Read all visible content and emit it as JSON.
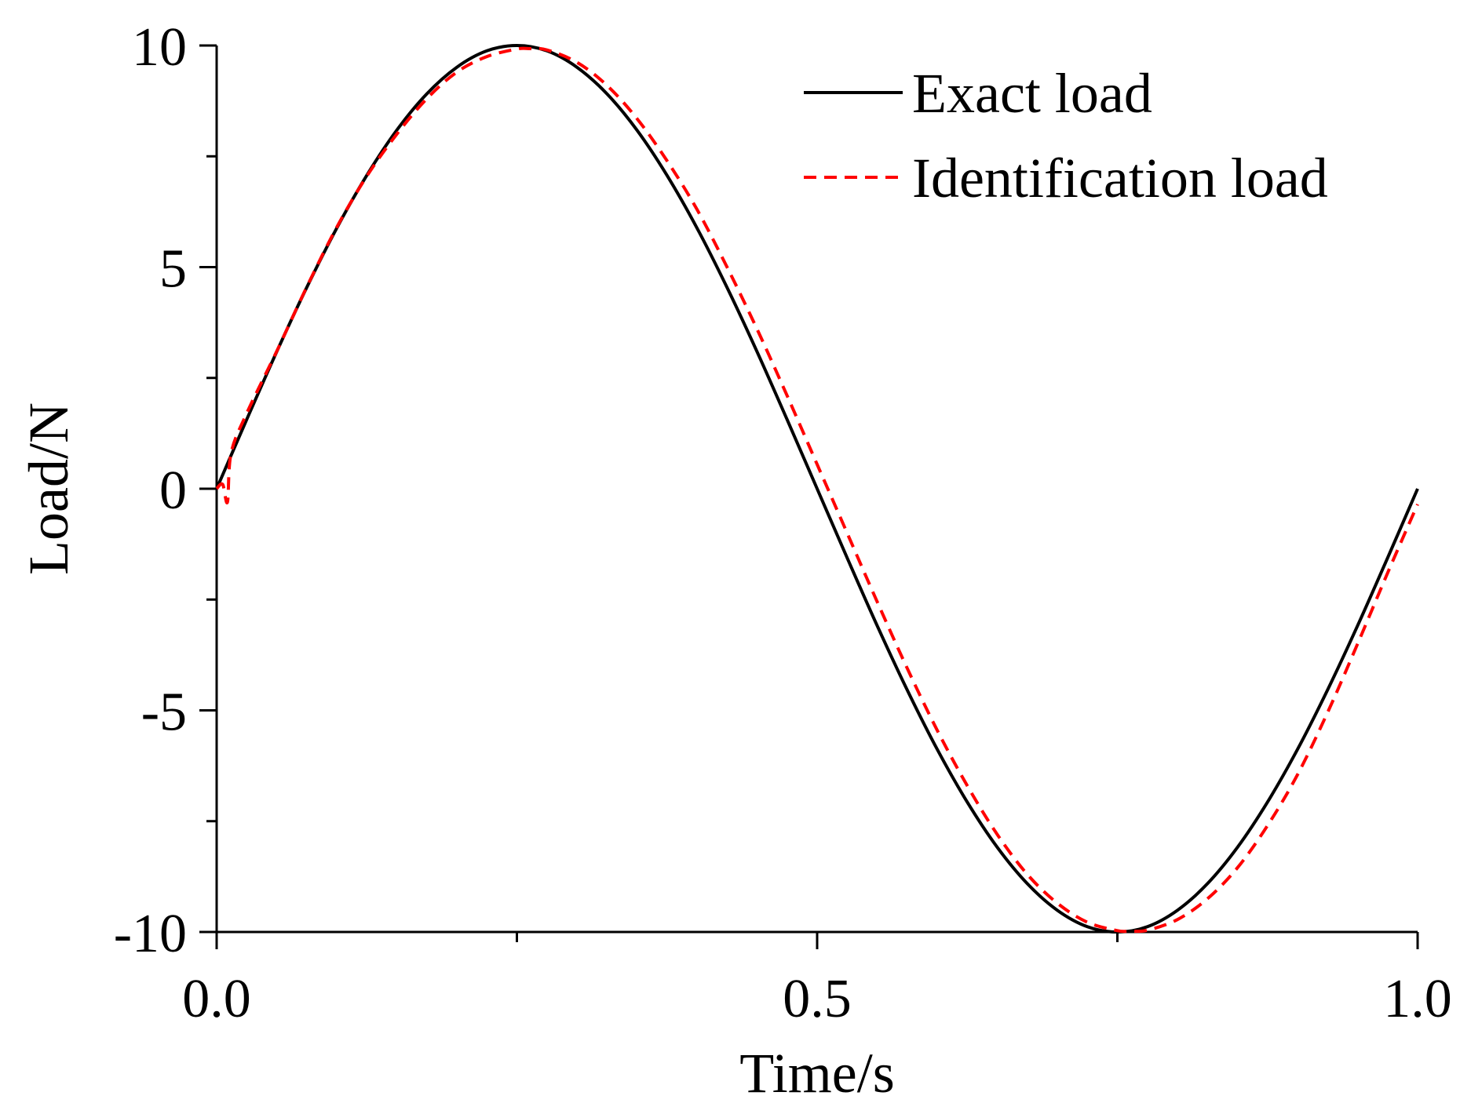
{
  "chart_data": {
    "type": "line",
    "title": "",
    "xlabel": "Time/s",
    "ylabel": "Load/N",
    "xlim": [
      0,
      1
    ],
    "ylim": [
      -10,
      10
    ],
    "x_ticks": [
      {
        "value": 0.0,
        "label": "0.0"
      },
      {
        "value": 0.5,
        "label": "0.5"
      },
      {
        "value": 1.0,
        "label": "1.0"
      }
    ],
    "x_minor_ticks": [
      0.25,
      0.75
    ],
    "y_ticks": [
      {
        "value": 10,
        "label": "10"
      },
      {
        "value": 5,
        "label": "5"
      },
      {
        "value": 0,
        "label": "0"
      },
      {
        "value": -5,
        "label": "-5"
      },
      {
        "value": -10,
        "label": "-10"
      }
    ],
    "y_minor_ticks": [
      7.5,
      2.5,
      -2.5,
      -7.5
    ],
    "grid": false,
    "legend_position": "top-right",
    "series": [
      {
        "name": "Exact load",
        "color": "#000000",
        "style": "solid",
        "x": [
          0,
          0.025,
          0.05,
          0.075,
          0.1,
          0.125,
          0.15,
          0.175,
          0.2,
          0.225,
          0.25,
          0.275,
          0.3,
          0.325,
          0.35,
          0.375,
          0.4,
          0.425,
          0.45,
          0.475,
          0.5,
          0.525,
          0.55,
          0.575,
          0.6,
          0.625,
          0.65,
          0.675,
          0.7,
          0.725,
          0.75,
          0.775,
          0.8,
          0.825,
          0.85,
          0.875,
          0.9,
          0.925,
          0.95,
          0.975,
          1.0
        ],
        "y": [
          0,
          1.56,
          3.09,
          4.54,
          5.88,
          7.07,
          8.09,
          8.91,
          9.51,
          9.88,
          10.0,
          9.88,
          9.51,
          8.91,
          8.09,
          7.07,
          5.88,
          4.54,
          3.09,
          1.56,
          0,
          -1.56,
          -3.09,
          -4.54,
          -5.88,
          -7.07,
          -8.09,
          -8.91,
          -9.51,
          -9.88,
          -10.0,
          -9.88,
          -9.51,
          -8.91,
          -8.09,
          -7.07,
          -5.88,
          -4.54,
          -3.09,
          -1.56,
          0
        ]
      },
      {
        "name": "Identification load",
        "color": "#ff0000",
        "style": "dashed",
        "x": [
          0,
          0.005,
          0.009,
          0.012,
          0.025,
          0.05,
          0.075,
          0.1,
          0.125,
          0.15,
          0.175,
          0.2,
          0.225,
          0.25,
          0.26,
          0.275,
          0.3,
          0.325,
          0.35,
          0.375,
          0.4,
          0.425,
          0.45,
          0.475,
          0.5,
          0.525,
          0.55,
          0.575,
          0.6,
          0.625,
          0.65,
          0.675,
          0.7,
          0.725,
          0.75,
          0.76,
          0.775,
          0.8,
          0.825,
          0.85,
          0.875,
          0.9,
          0.925,
          0.95,
          0.975,
          1.0
        ],
        "y": [
          0,
          0.1,
          -0.3,
          0.8,
          1.7,
          3.1,
          4.55,
          5.9,
          7.05,
          8.0,
          8.8,
          9.4,
          9.75,
          9.92,
          9.93,
          9.9,
          9.62,
          9.1,
          8.35,
          7.4,
          6.3,
          5.0,
          3.6,
          2.1,
          0.55,
          -1.0,
          -2.55,
          -4.05,
          -5.45,
          -6.7,
          -7.8,
          -8.7,
          -9.35,
          -9.78,
          -9.97,
          -9.98,
          -9.96,
          -9.72,
          -9.25,
          -8.55,
          -7.6,
          -6.45,
          -5.05,
          -3.5,
          -1.9,
          -0.35
        ]
      }
    ]
  }
}
